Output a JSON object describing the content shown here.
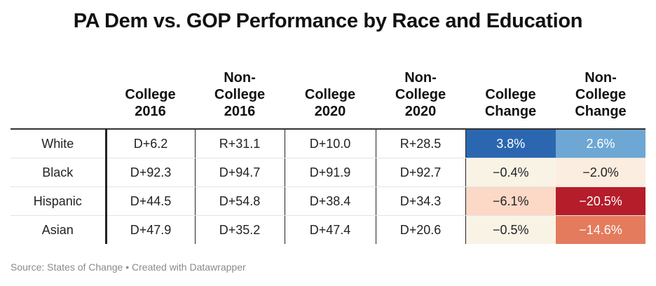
{
  "title": "PA Dem vs. GOP Performance by Race and Education",
  "source": "Source: States of Change • Created with Datawrapper",
  "chart_data": {
    "type": "table",
    "title": "PA Dem vs. GOP Performance by Race and Education",
    "columns": [
      {
        "key": "group",
        "lines": [
          ""
        ]
      },
      {
        "key": "college_2016",
        "lines": [
          "College",
          "2016"
        ]
      },
      {
        "key": "noncollege_2016",
        "lines": [
          "Non-",
          "College",
          "2016"
        ]
      },
      {
        "key": "college_2020",
        "lines": [
          "College",
          "2020"
        ]
      },
      {
        "key": "noncollege_2020",
        "lines": [
          "Non-",
          "College",
          "2020"
        ]
      },
      {
        "key": "college_change",
        "lines": [
          "College",
          "Change"
        ]
      },
      {
        "key": "noncollege_change",
        "lines": [
          "Non-",
          "College",
          "Change"
        ]
      }
    ],
    "rows": [
      {
        "group": "White",
        "college_2016": "D+6.2",
        "noncollege_2016": "R+31.1",
        "college_2020": "D+10.0",
        "noncollege_2020": "R+28.5",
        "college_change": {
          "text": "3.8%",
          "value": 3.8,
          "bg": "#2b67b0",
          "fg": "#ffffff"
        },
        "noncollege_change": {
          "text": "2.6%",
          "value": 2.6,
          "bg": "#6ea7d4",
          "fg": "#ffffff"
        }
      },
      {
        "group": "Black",
        "college_2016": "D+92.3",
        "noncollege_2016": "D+94.7",
        "college_2020": "D+91.9",
        "noncollege_2020": "D+92.7",
        "college_change": {
          "text": "−0.4%",
          "value": -0.4,
          "bg": "#f9f3e6",
          "fg": "#222222"
        },
        "noncollege_change": {
          "text": "−2.0%",
          "value": -2.0,
          "bg": "#fbede0",
          "fg": "#222222"
        }
      },
      {
        "group": "Hispanic",
        "college_2016": "D+44.5",
        "noncollege_2016": "D+54.8",
        "college_2020": "D+38.4",
        "noncollege_2020": "D+34.3",
        "college_change": {
          "text": "−6.1%",
          "value": -6.1,
          "bg": "#fbd9c6",
          "fg": "#222222"
        },
        "noncollege_change": {
          "text": "−20.5%",
          "value": -20.5,
          "bg": "#b51d2a",
          "fg": "#ffffff"
        }
      },
      {
        "group": "Asian",
        "college_2016": "D+47.9",
        "noncollege_2016": "D+35.2",
        "college_2020": "D+47.4",
        "noncollege_2020": "D+20.6",
        "college_change": {
          "text": "−0.5%",
          "value": -0.5,
          "bg": "#f9f3e6",
          "fg": "#222222"
        },
        "noncollege_change": {
          "text": "−14.6%",
          "value": -14.6,
          "bg": "#e47b5c",
          "fg": "#ffffff"
        }
      }
    ]
  }
}
